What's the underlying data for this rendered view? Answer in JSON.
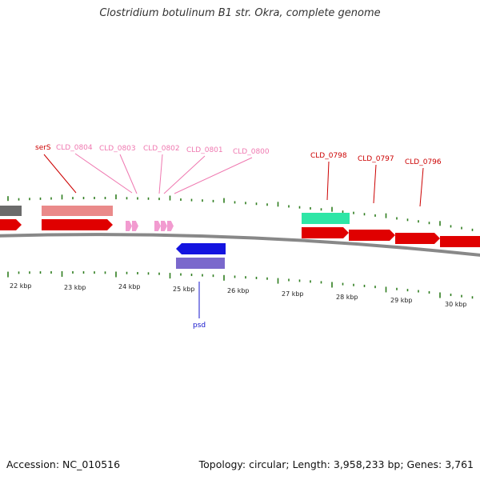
{
  "title": "Clostridium botulinum B1 str. Okra, complete genome",
  "footer": {
    "accession": "Accession: NC_010516",
    "summary": "Topology: circular; Length: 3,958,233 bp; Genes: 3,761"
  },
  "colors": {
    "backbone": "#888888",
    "tick": "#2e7d1e",
    "gene_strong": "#e00000",
    "gene_light": "#ea8a8a",
    "gene_pink": "#f29bd0",
    "gene_blue": "#1414e0",
    "gene_purple": "#7a68cc",
    "gene_teal": "#2ee6a6",
    "gene_gray": "#6b6b6b",
    "label_pink": "#ef78b0",
    "label_red": "#cc0000",
    "label_blue": "#1414cc"
  },
  "scale": {
    "tick_labels": [
      "22 kbp",
      "23 kbp",
      "24 kbp",
      "25 kbp",
      "26 kbp",
      "27 kbp",
      "28 kbp",
      "29 kbp",
      "30 kbp"
    ]
  },
  "gene_labels": [
    {
      "id": "serS",
      "text": "serS",
      "color": "label_red"
    },
    {
      "id": "CLD_0804",
      "text": "CLD_0804",
      "color": "label_pink"
    },
    {
      "id": "CLD_0803",
      "text": "CLD_0803",
      "color": "label_pink"
    },
    {
      "id": "CLD_0802",
      "text": "CLD_0802",
      "color": "label_pink"
    },
    {
      "id": "CLD_0801",
      "text": "CLD_0801",
      "color": "label_pink"
    },
    {
      "id": "CLD_0800",
      "text": "CLD_0800",
      "color": "label_pink"
    },
    {
      "id": "CLD_0798",
      "text": "CLD_0798",
      "color": "label_red"
    },
    {
      "id": "CLD_0797",
      "text": "CLD_0797",
      "color": "label_red"
    },
    {
      "id": "CLD_0796",
      "text": "CLD_0796",
      "color": "label_red"
    },
    {
      "id": "psd",
      "text": "psd",
      "color": "label_blue"
    }
  ]
}
